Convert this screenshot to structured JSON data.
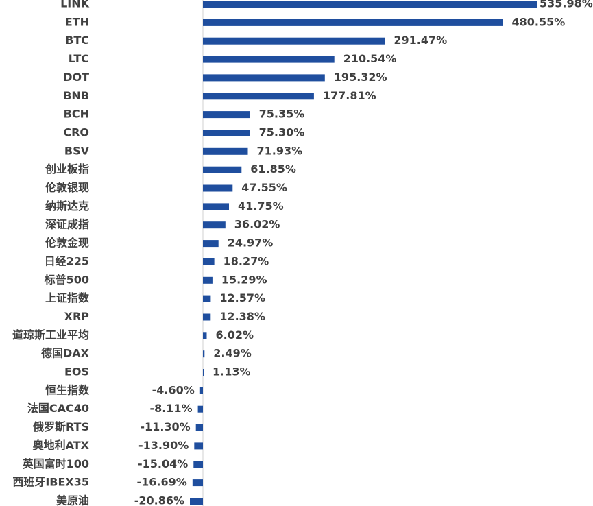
{
  "chart_data": {
    "type": "bar",
    "orientation": "horizontal",
    "bar_color": "#1f4e9e",
    "categories": [
      "LINK",
      "ETH",
      "BTC",
      "LTC",
      "DOT",
      "BNB",
      "BCH",
      "CRO",
      "BSV",
      "创业板指",
      "伦敦银现",
      "纳斯达克",
      "深证成指",
      "伦敦金现",
      "日经225",
      "标普500",
      "上证指数",
      "XRP",
      "道琼斯工业平均",
      "德国DAX",
      "EOS",
      "恒生指数",
      "法国CAC40",
      "俄罗斯RTS",
      "奥地利ATX",
      "英国富时100",
      "西班牙IBEX35",
      "美原油"
    ],
    "values": [
      535.98,
      480.55,
      291.47,
      210.54,
      195.32,
      177.81,
      75.35,
      75.3,
      71.93,
      61.85,
      47.55,
      41.75,
      36.02,
      24.97,
      18.27,
      15.29,
      12.57,
      12.38,
      6.02,
      2.49,
      1.13,
      -4.6,
      -8.11,
      -11.3,
      -13.9,
      -15.04,
      -16.69,
      -20.86
    ],
    "value_labels": [
      "535.98%",
      "480.55%",
      "291.47%",
      "210.54%",
      "195.32%",
      "177.81%",
      "75.35%",
      "75.30%",
      "71.93%",
      "61.85%",
      "47.55%",
      "41.75%",
      "36.02%",
      "24.97%",
      "18.27%",
      "15.29%",
      "12.57%",
      "12.38%",
      "6.02%",
      "2.49%",
      "1.13%",
      "-4.60%",
      "-8.11%",
      "-11.30%",
      "-13.90%",
      "-15.04%",
      "-16.69%",
      "-20.86%"
    ],
    "title": "",
    "xlabel": "",
    "ylabel": "",
    "grid": false,
    "legend": "none"
  }
}
